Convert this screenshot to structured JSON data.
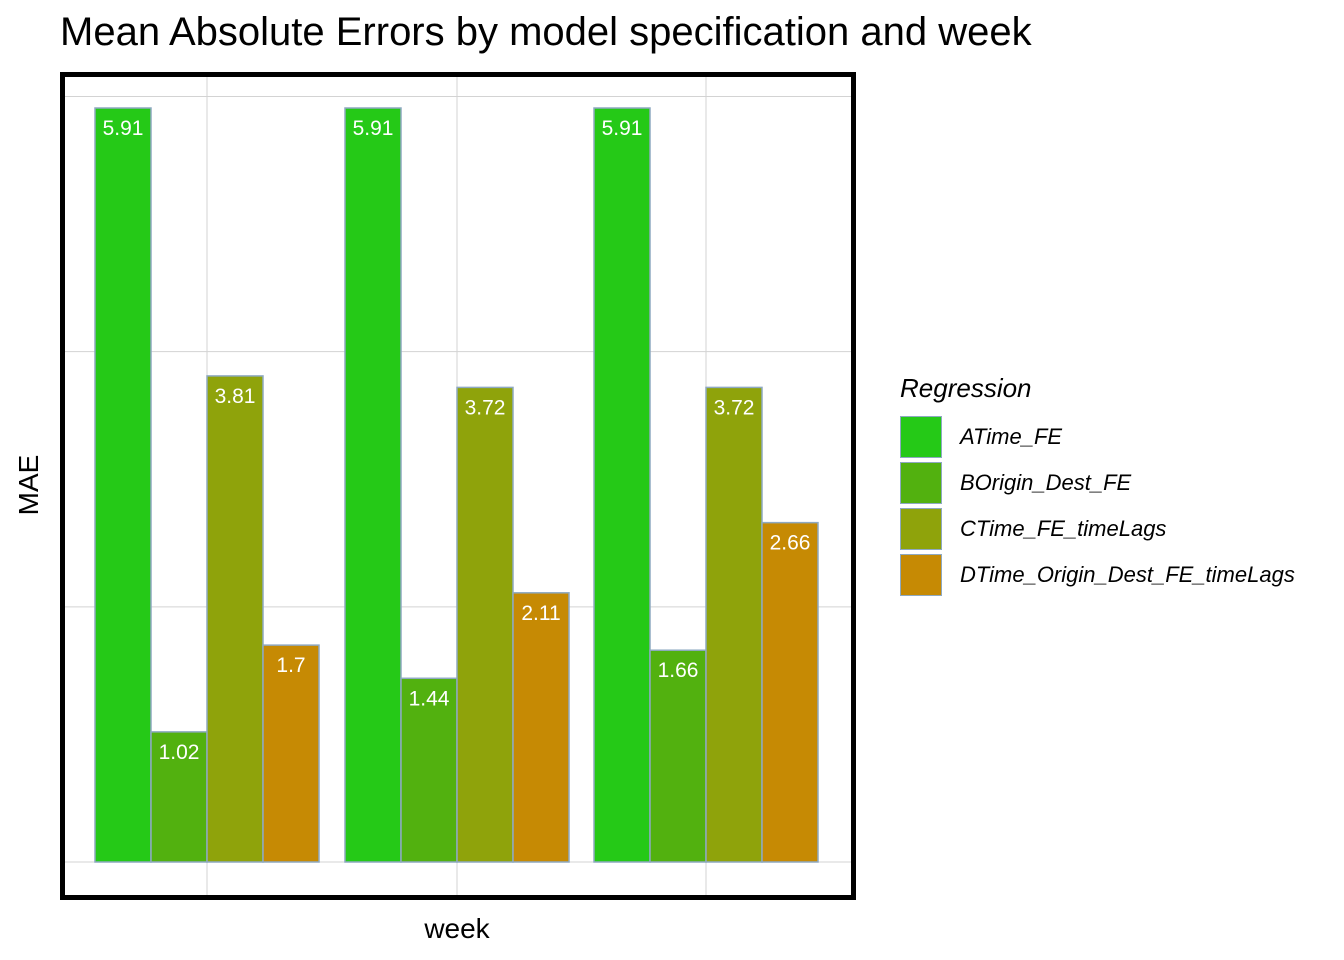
{
  "chart_data": {
    "type": "bar",
    "title": "Mean Absolute Errors by model specification and week",
    "xlabel": "week",
    "ylabel": "MAE",
    "ylim": [
      0,
      6.3
    ],
    "grid": true,
    "legend_title": "Regression",
    "legend_position": "right",
    "groups": 3,
    "series": [
      {
        "name": "ATime_FE",
        "color": "#25c917",
        "values": [
          5.91,
          5.91,
          5.91
        ],
        "labels": [
          "5.91",
          "5.91",
          "5.91"
        ]
      },
      {
        "name": "BOrigin_Dest_FE",
        "color": "#52b10f",
        "values": [
          1.02,
          1.44,
          1.66
        ],
        "labels": [
          "1.02",
          "1.44",
          "1.66"
        ]
      },
      {
        "name": "CTime_FE_timeLags",
        "color": "#8fa30b",
        "values": [
          3.81,
          3.72,
          3.72
        ],
        "labels": [
          "3.81",
          "3.72",
          "3.72"
        ]
      },
      {
        "name": "DTime_Origin_Dest_FE_timeLags",
        "color": "#c68a04",
        "values": [
          1.7,
          2.11,
          2.66
        ],
        "labels": [
          "1.7",
          "2.11",
          "2.66"
        ]
      }
    ],
    "colors": {
      "bar_outline": "#8ea9c1",
      "grid": "#d3d3d3",
      "panel_border": "#000000",
      "label_text": "#ffffff"
    }
  }
}
